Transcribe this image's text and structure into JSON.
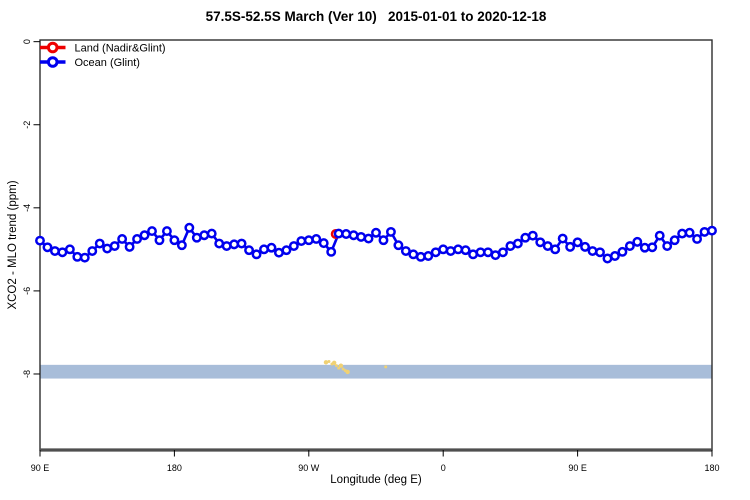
{
  "title": "57.5S-52.5S March (Ver 10)   2015-01-01 to 2020-12-18",
  "axes": {
    "x": {
      "label": "Longitude (deg E)",
      "ticks": [
        {
          "lon": 90,
          "label": "90 E"
        },
        {
          "lon": 180,
          "label": "180"
        },
        {
          "lon": 270,
          "label": "90 W"
        },
        {
          "lon": 360,
          "label": "0"
        },
        {
          "lon": 450,
          "label": "90 E"
        },
        {
          "lon": 540,
          "label": "180"
        }
      ]
    },
    "y": {
      "label": "XCO2 - MLO trend (ppm)",
      "ticks": [
        {
          "value": 0,
          "label": "0"
        },
        {
          "value": -2,
          "label": "-2"
        },
        {
          "value": -4,
          "label": "-4"
        },
        {
          "value": -6,
          "label": "-6"
        },
        {
          "value": -8,
          "label": "-8"
        }
      ]
    }
  },
  "legend": [
    {
      "label": "Land (Nadir&Glint)",
      "color": "#ee0000"
    },
    {
      "label": "Ocean (Glint)",
      "color": "#0000ee"
    }
  ],
  "colors": {
    "land": "#ee0000",
    "ocean": "#0000ee",
    "band": "#a8bdd9",
    "terrain": "#f0d173",
    "bottom_bar": "#4f4f4f",
    "box": "#2d2d2d",
    "text": "#000000"
  },
  "chart_data": {
    "type": "line",
    "title": "57.5S-52.5S March (Ver 10)   2015-01-01 to 2020-12-18",
    "xlabel": "Longitude (deg E)",
    "ylabel": "XCO2 - MLO trend (ppm)",
    "xlim": [
      90,
      540
    ],
    "ylim": [
      -9.83,
      0.04
    ],
    "grid": false,
    "legend_position": "top-left",
    "series": [
      {
        "name": "Ocean (Glint)",
        "color": "#0000ee",
        "marker": "open-circle",
        "x": [
          90,
          95,
          100,
          105,
          110,
          115,
          120,
          125,
          130,
          135,
          140,
          145,
          150,
          155,
          160,
          165,
          170,
          175,
          180,
          185,
          190,
          195,
          200,
          205,
          210,
          215,
          220,
          225,
          230,
          235,
          240,
          245,
          250,
          255,
          260,
          265,
          270,
          275,
          280,
          285,
          290,
          295,
          300,
          305,
          310,
          315,
          320,
          325,
          330,
          335,
          340,
          345,
          350,
          355,
          360,
          365,
          370,
          375,
          380,
          385,
          390,
          395,
          400,
          405,
          410,
          415,
          420,
          425,
          430,
          435,
          440,
          445,
          450,
          455,
          460,
          465,
          470,
          475,
          480,
          485,
          490,
          495,
          500,
          505,
          510,
          515,
          520,
          525,
          530,
          535,
          540
        ],
        "values": [
          -4.79,
          -4.95,
          -5.04,
          -5.07,
          -5.0,
          -5.18,
          -5.2,
          -5.04,
          -4.86,
          -4.98,
          -4.92,
          -4.75,
          -4.94,
          -4.75,
          -4.66,
          -4.56,
          -4.78,
          -4.56,
          -4.78,
          -4.9,
          -4.48,
          -4.72,
          -4.66,
          -4.62,
          -4.86,
          -4.92,
          -4.88,
          -4.86,
          -5.02,
          -5.12,
          -5.0,
          -4.96,
          -5.08,
          -5.02,
          -4.92,
          -4.8,
          -4.78,
          -4.75,
          -4.85,
          -5.06,
          -4.62,
          -4.63,
          -4.66,
          -4.7,
          -4.74,
          -4.6,
          -4.78,
          -4.58,
          -4.9,
          -5.04,
          -5.12,
          -5.18,
          -5.16,
          -5.07,
          -5.0,
          -5.04,
          -5.0,
          -5.02,
          -5.12,
          -5.07,
          -5.07,
          -5.14,
          -5.07,
          -4.92,
          -4.86,
          -4.72,
          -4.67,
          -4.83,
          -4.92,
          -5.0,
          -4.74,
          -4.94,
          -4.83,
          -4.94,
          -5.04,
          -5.07,
          -5.22,
          -5.16,
          -5.06,
          -4.92,
          -4.82,
          -4.96,
          -4.95,
          -4.67,
          -4.92,
          -4.78,
          -4.62,
          -4.6,
          -4.75,
          -4.58,
          -4.55
        ]
      },
      {
        "name": "Land (Nadir&Glint)",
        "color": "#ee0000",
        "marker": "open-circle",
        "x": [
          288
        ],
        "values": [
          -4.63
        ]
      }
    ],
    "reference_band": {
      "y_from": -7.78,
      "y_to": -8.11,
      "color": "#a8bdd9"
    },
    "terrain_dots": {
      "color": "#f0d173",
      "points": [
        [
          281.5,
          -7.72
        ],
        [
          283.5,
          -7.7
        ],
        [
          285.5,
          -7.76
        ],
        [
          287,
          -7.73
        ],
        [
          288.5,
          -7.8
        ],
        [
          290,
          -7.86
        ],
        [
          291.5,
          -7.8
        ],
        [
          293,
          -7.88
        ],
        [
          294.5,
          -7.92
        ],
        [
          296,
          -7.95
        ],
        [
          321.5,
          -7.83
        ]
      ]
    },
    "bottom_bar": {
      "value": -9.83,
      "color": "#4f4f4f"
    }
  }
}
